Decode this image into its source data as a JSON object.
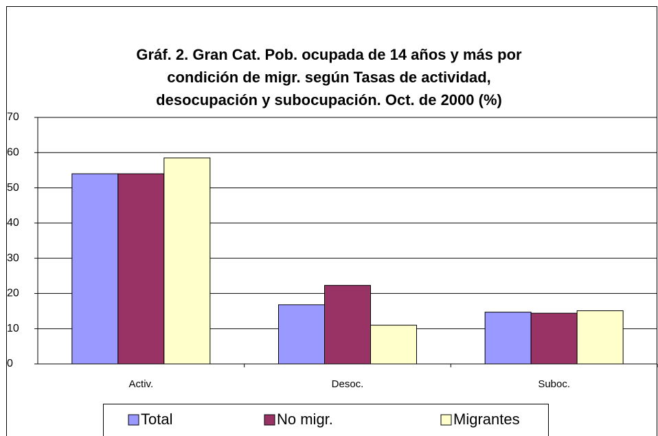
{
  "chart_data": {
    "type": "bar",
    "title": [
      "Gráf. 2. Gran Cat. Pob. ocupada de 14 años y más por",
      "condición de migr. según Tasas de actividad,",
      "desocupación  y subocupación. Oct. de 2000 (%)"
    ],
    "categories": [
      "Activ.",
      "Desoc.",
      "Suboc."
    ],
    "series": [
      {
        "name": "Total",
        "color": "#9999ff",
        "values": [
          54,
          16.8,
          14.7
        ]
      },
      {
        "name": "No migr.",
        "color": "#993366",
        "values": [
          54,
          22.3,
          14.4
        ]
      },
      {
        "name": "Migrantes",
        "color": "#ffffcc",
        "values": [
          58.5,
          11,
          15.1
        ]
      }
    ],
    "ylim": [
      0,
      70
    ],
    "yticks": [
      0,
      10,
      20,
      30,
      40,
      50,
      60,
      70
    ],
    "grid": true,
    "legend": "bottom"
  }
}
